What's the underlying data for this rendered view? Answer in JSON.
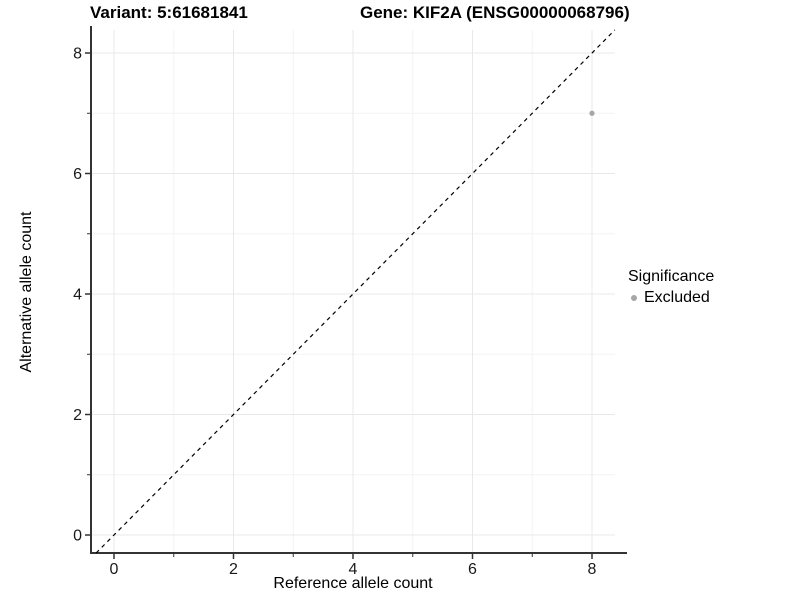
{
  "title": {
    "variant": "Variant: 5:61681841",
    "gene": "Gene: KIF2A (ENSG00000068796)"
  },
  "axes": {
    "x_label": "Reference allele count",
    "y_label": "Alternative allele count"
  },
  "legend": {
    "title": "Significance",
    "items": [
      {
        "label": "Excluded",
        "color": "#a6a6a6"
      }
    ]
  },
  "colors": {
    "background": "#ffffff",
    "axis_line": "#333333",
    "tick_label": "#1a1a1a",
    "grid_major": "#e8e8e8",
    "grid_minor": "#f4f4f4",
    "point": "#a6a6a6",
    "reference_line": "#000000"
  },
  "chart_data": {
    "type": "scatter",
    "title": "Variant: 5:61681841    Gene: KIF2A (ENSG00000068796)",
    "xlabel": "Reference allele count",
    "ylabel": "Alternative allele count",
    "xlim": [
      -0.4,
      8.4
    ],
    "ylim": [
      -0.4,
      8.4
    ],
    "x_major_ticks": [
      0,
      2,
      4,
      6,
      8
    ],
    "x_minor_ticks": [
      1,
      3,
      5,
      7
    ],
    "y_major_ticks": [
      0,
      2,
      4,
      6,
      8
    ],
    "y_minor_ticks": [
      1,
      3,
      5,
      7
    ],
    "grid": "major and minor, light gray on white",
    "legend_position": "right",
    "series": [
      {
        "name": "Excluded",
        "color": "#a6a6a6",
        "points": [
          {
            "x": 8,
            "y": 7
          }
        ]
      }
    ],
    "reference_line": {
      "kind": "identity y=x",
      "style": "dashed",
      "color": "#000000"
    }
  }
}
